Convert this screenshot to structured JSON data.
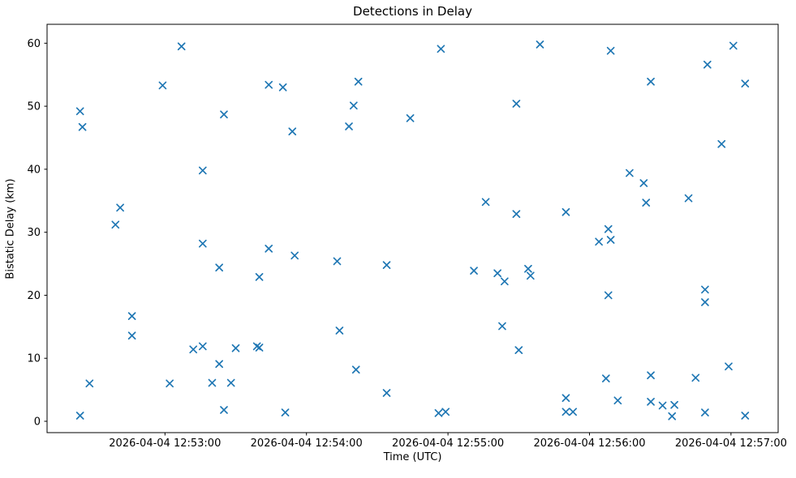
{
  "figure": {
    "title": "Detections in Delay",
    "xlabel": "Time (UTC)",
    "ylabel": "Bistatic Delay (km)"
  },
  "chart_data": {
    "type": "scatter",
    "title": "Detections in Delay",
    "xlabel": "Time (UTC)",
    "ylabel": "Bistatic Delay (km)",
    "grid": false,
    "legend": "none",
    "marker": "x",
    "marker_color": "#1f77b4",
    "axis_color": "#000000",
    "date": "2026-04-04",
    "x_tick_labels": [
      "2026-04-04 12:53:00",
      "2026-04-04 12:54:00",
      "2026-04-04 12:55:00",
      "2026-04-04 12:56:00",
      "2026-04-04 12:57:00"
    ],
    "y_ticks": [
      0,
      10,
      20,
      30,
      40,
      50,
      60
    ],
    "xlim": [
      "2026-04-04 12:52:10",
      "2026-04-04 12:57:20"
    ],
    "ylim": [
      -1.8,
      63.0
    ],
    "points": [
      {
        "t": "12:52:24",
        "y": 49.2
      },
      {
        "t": "12:52:24",
        "y": 0.9
      },
      {
        "t": "12:52:25",
        "y": 46.7
      },
      {
        "t": "12:52:28",
        "y": 6.0
      },
      {
        "t": "12:52:39",
        "y": 31.2
      },
      {
        "t": "12:52:41",
        "y": 33.9
      },
      {
        "t": "12:52:46",
        "y": 16.7
      },
      {
        "t": "12:52:46",
        "y": 13.6
      },
      {
        "t": "12:52:59",
        "y": 53.3
      },
      {
        "t": "12:53:02",
        "y": 6.0
      },
      {
        "t": "12:53:07",
        "y": 59.5
      },
      {
        "t": "12:53:12",
        "y": 11.4
      },
      {
        "t": "12:53:16",
        "y": 39.8
      },
      {
        "t": "12:53:16",
        "y": 28.2
      },
      {
        "t": "12:53:16",
        "y": 11.9
      },
      {
        "t": "12:53:20",
        "y": 6.1
      },
      {
        "t": "12:53:23",
        "y": 24.4
      },
      {
        "t": "12:53:23",
        "y": 9.1
      },
      {
        "t": "12:53:25",
        "y": 48.7
      },
      {
        "t": "12:53:25",
        "y": 1.8
      },
      {
        "t": "12:53:28",
        "y": 6.1
      },
      {
        "t": "12:53:30",
        "y": 11.6
      },
      {
        "t": "12:53:39",
        "y": 11.9
      },
      {
        "t": "12:53:40",
        "y": 11.7
      },
      {
        "t": "12:53:40",
        "y": 22.9
      },
      {
        "t": "12:53:44",
        "y": 53.4
      },
      {
        "t": "12:53:44",
        "y": 27.4
      },
      {
        "t": "12:53:50",
        "y": 53.0
      },
      {
        "t": "12:53:51",
        "y": 1.4
      },
      {
        "t": "12:53:54",
        "y": 46.0
      },
      {
        "t": "12:53:55",
        "y": 26.3
      },
      {
        "t": "12:54:13",
        "y": 25.4
      },
      {
        "t": "12:54:14",
        "y": 14.4
      },
      {
        "t": "12:54:18",
        "y": 46.8
      },
      {
        "t": "12:54:20",
        "y": 50.1
      },
      {
        "t": "12:54:21",
        "y": 8.2
      },
      {
        "t": "12:54:22",
        "y": 53.9
      },
      {
        "t": "12:54:34",
        "y": 24.8
      },
      {
        "t": "12:54:34",
        "y": 4.5
      },
      {
        "t": "12:54:44",
        "y": 48.1
      },
      {
        "t": "12:54:56",
        "y": 1.3
      },
      {
        "t": "12:54:57",
        "y": 59.1
      },
      {
        "t": "12:54:59",
        "y": 1.5
      },
      {
        "t": "12:55:11",
        "y": 23.9
      },
      {
        "t": "12:55:16",
        "y": 34.8
      },
      {
        "t": "12:55:21",
        "y": 23.5
      },
      {
        "t": "12:55:23",
        "y": 15.1
      },
      {
        "t": "12:55:24",
        "y": 22.2
      },
      {
        "t": "12:55:29",
        "y": 50.4
      },
      {
        "t": "12:55:29",
        "y": 32.9
      },
      {
        "t": "12:55:30",
        "y": 11.3
      },
      {
        "t": "12:55:34",
        "y": 24.2
      },
      {
        "t": "12:55:35",
        "y": 23.1
      },
      {
        "t": "12:55:39",
        "y": 59.8
      },
      {
        "t": "12:55:50",
        "y": 33.2
      },
      {
        "t": "12:55:50",
        "y": 3.7
      },
      {
        "t": "12:55:50",
        "y": 1.5
      },
      {
        "t": "12:55:53",
        "y": 1.5
      },
      {
        "t": "12:56:04",
        "y": 28.5
      },
      {
        "t": "12:56:07",
        "y": 6.8
      },
      {
        "t": "12:56:08",
        "y": 30.5
      },
      {
        "t": "12:56:08",
        "y": 20.0
      },
      {
        "t": "12:56:09",
        "y": 58.8
      },
      {
        "t": "12:56:09",
        "y": 28.8
      },
      {
        "t": "12:56:12",
        "y": 3.3
      },
      {
        "t": "12:56:17",
        "y": 39.4
      },
      {
        "t": "12:56:23",
        "y": 37.8
      },
      {
        "t": "12:56:24",
        "y": 34.7
      },
      {
        "t": "12:56:26",
        "y": 53.9
      },
      {
        "t": "12:56:26",
        "y": 7.3
      },
      {
        "t": "12:56:26",
        "y": 3.1
      },
      {
        "t": "12:56:31",
        "y": 2.5
      },
      {
        "t": "12:56:35",
        "y": 0.8
      },
      {
        "t": "12:56:36",
        "y": 2.6
      },
      {
        "t": "12:56:42",
        "y": 35.4
      },
      {
        "t": "12:56:45",
        "y": 6.9
      },
      {
        "t": "12:56:49",
        "y": 20.9
      },
      {
        "t": "12:56:49",
        "y": 18.9
      },
      {
        "t": "12:56:49",
        "y": 1.4
      },
      {
        "t": "12:56:50",
        "y": 56.6
      },
      {
        "t": "12:56:56",
        "y": 44.0
      },
      {
        "t": "12:56:59",
        "y": 8.7
      },
      {
        "t": "12:57:01",
        "y": 59.6
      },
      {
        "t": "12:57:06",
        "y": 53.6
      },
      {
        "t": "12:57:06",
        "y": 0.9
      }
    ]
  }
}
